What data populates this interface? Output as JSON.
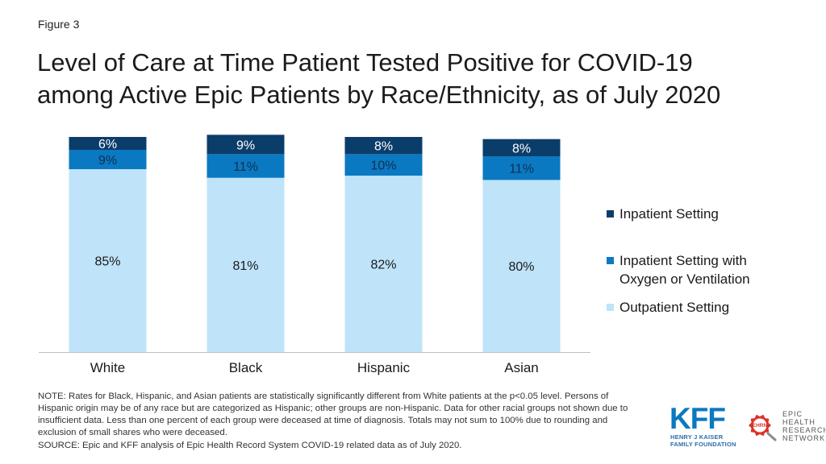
{
  "figure_label": "Figure 3",
  "title_lines": [
    "Level of Care at Time Patient Tested Positive for COVID-19",
    "among Active Epic Patients by Race/Ethnicity, as of July 2020"
  ],
  "chart_data": {
    "type": "bar",
    "stacked": true,
    "orientation": "vertical",
    "categories": [
      "White",
      "Black",
      "Hispanic",
      "Asian"
    ],
    "series": [
      {
        "name": "Outpatient Setting",
        "values": [
          85,
          81,
          82,
          80
        ],
        "labels": [
          "85%",
          "81%",
          "82%",
          "80%"
        ],
        "color": "#bfe3f9"
      },
      {
        "name": "Inpatient Setting with Oxygen or Ventilation",
        "values": [
          9,
          11,
          10,
          11
        ],
        "labels": [
          "9%",
          "11%",
          "10%",
          "11%"
        ],
        "color": "#0a79c2"
      },
      {
        "name": "Inpatient Setting",
        "values": [
          6,
          9,
          8,
          8
        ],
        "labels": [
          "6%",
          "9%",
          "8%",
          "8%"
        ],
        "color": "#0b3d6b"
      }
    ],
    "ylim": [
      0,
      100
    ],
    "grid": false,
    "legend_position": "right"
  },
  "legend": {
    "items": [
      {
        "label_lines": [
          "Inpatient Setting"
        ],
        "color": "#0b3d6b"
      },
      {
        "label_lines": [
          "Inpatient Setting with",
          "Oxygen or Ventilation"
        ],
        "color": "#0a79c2"
      },
      {
        "label_lines": [
          "Outpatient Setting"
        ],
        "color": "#bfe3f9"
      }
    ]
  },
  "note": "NOTE: Rates for Black, Hispanic, and Asian patients are statistically significantly different from White patients at the p<0.05 level. Persons of Hispanic origin may be of any race but are categorized as Hispanic; other groups are non-Hispanic. Data for other racial groups not shown due to insufficient data. Less than one percent of each group were deceased at time of diagnosis. Totals may not sum to 100% due to rounding and exclusion of small shares who were deceased.",
  "source": "SOURCE: Epic and KFF analysis of Epic Health Record System COVID-19 related data as of July 2020.",
  "logos": {
    "kff_mark": "KFF",
    "kff_sub_lines": [
      "HENRY J KAISER",
      "FAMILY FOUNDATION"
    ],
    "ehrn_badge": "EHRN",
    "ehrn_lines": [
      "EPIC",
      "HEALTH",
      "RESEARCH",
      "NETWORK"
    ],
    "ehrn_color": "#d9332b"
  }
}
